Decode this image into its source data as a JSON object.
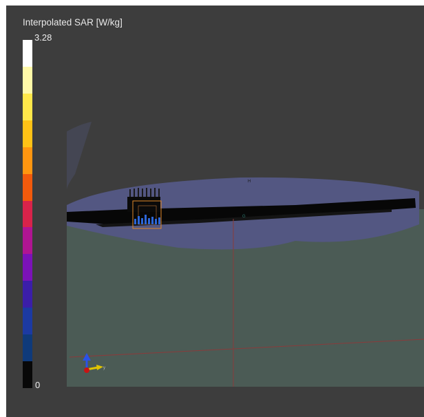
{
  "legend": {
    "title": "Interpolated SAR [W/kg]",
    "max_label": "3.28",
    "min_label": "0",
    "colors": [
      "#ffffff",
      "#fff9a8",
      "#ffe84a",
      "#ffc216",
      "#ff9610",
      "#f25a0c",
      "#d8234a",
      "#b01592",
      "#7b12b8",
      "#3b1ea8",
      "#1c3aa2",
      "#0f3a7a",
      "#080808"
    ]
  },
  "scene": {
    "label_h": "H",
    "label_g": "G",
    "axis_label_y": "y",
    "colors": {
      "background": "#3d3d3d",
      "body_tissue": "#4b5b55",
      "head_disk": "#535782",
      "phone": "#070707",
      "bounding_box": "#e38a2a",
      "x_axis_arrow": "#e0c400",
      "z_axis_arrow": "#2a52e8",
      "origin": "#c81414"
    }
  }
}
